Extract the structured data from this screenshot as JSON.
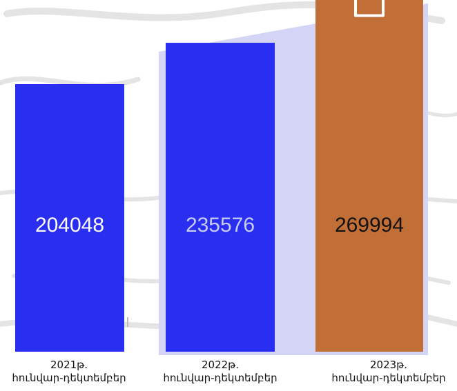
{
  "chart_data": {
    "type": "bar",
    "categories": [
      {
        "year": "2021թ.",
        "period": "հունվար-դեկտեմբեր"
      },
      {
        "year": "2022թ.",
        "period": "հունվար-դեկտեմբեր"
      },
      {
        "year": "2023թ.",
        "period": "հունվար-դեկտեմբեր"
      }
    ],
    "values": [
      204048,
      235576,
      269994
    ],
    "value_labels": [
      "204048",
      "235576",
      "269994"
    ],
    "colors": [
      "#2a2ef0",
      "#2a2ef0",
      "#c26e37"
    ],
    "label_colors": [
      "#ffffff",
      "#c8cdf5",
      "#111111"
    ],
    "highlight_color": "#d4d4f7",
    "arrow_color": "#c26e37",
    "grid": false,
    "legend": "none",
    "title": "",
    "xlabel": "",
    "ylabel": ""
  }
}
